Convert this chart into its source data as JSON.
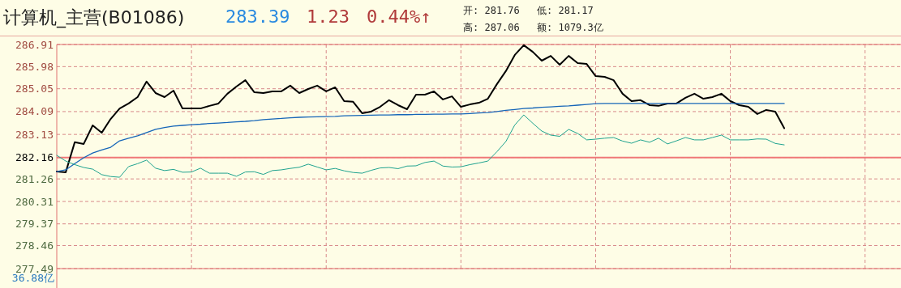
{
  "chart_data": {
    "type": "line",
    "title": "计算机_主营(B01086)",
    "annotations": [
      "283.39",
      "1.23",
      "0.44%↑",
      "开: 281.76",
      "低: 281.17",
      "高: 287.06",
      "额: 1079.3亿",
      "36.88亿"
    ],
    "categories": [
      null,
      null,
      null,
      null,
      null,
      null,
      null,
      null,
      null,
      null,
      null,
      null,
      null,
      null,
      null,
      null,
      null,
      null,
      null,
      null,
      null,
      null,
      null,
      null,
      null,
      null,
      null,
      null,
      null,
      null,
      null,
      null,
      null,
      null,
      null,
      null,
      null,
      null,
      null,
      null,
      null,
      null,
      null,
      null,
      null,
      null,
      null,
      null,
      null,
      null,
      null,
      null,
      null,
      null,
      null,
      null,
      null,
      null,
      null,
      null,
      null,
      null,
      null,
      null,
      null,
      null,
      null,
      null,
      null,
      null,
      null,
      null,
      null,
      null,
      null,
      null,
      null,
      null,
      null,
      null,
      null,
      null,
      null,
      null,
      null,
      null,
      null,
      null,
      null,
      null,
      null,
      null,
      null,
      null,
      null
    ],
    "ylim": [
      277.49,
      286.91
    ],
    "yticks": [
      277.49,
      278.46,
      279.37,
      280.31,
      281.26,
      282.16,
      283.13,
      284.09,
      285.05,
      285.98,
      286.91
    ],
    "grid": true,
    "marker": "none",
    "line_style": "solid",
    "ref_lines": [
      {
        "axis": "y",
        "value": 282.16,
        "label": null,
        "color": "#f07878",
        "line_style": "solid"
      }
    ],
    "series": [
      {
        "color": "#000000",
        "values": [
          281.57,
          281.54,
          282.8,
          282.73,
          283.51,
          283.2,
          283.78,
          284.22,
          284.43,
          284.7,
          285.35,
          284.87,
          284.7,
          284.97,
          284.22,
          284.22,
          284.22,
          284.33,
          284.43,
          284.84,
          285.14,
          285.41,
          284.9,
          284.87,
          284.94,
          284.94,
          285.18,
          284.87,
          285.04,
          285.18,
          284.94,
          285.11,
          284.53,
          284.5,
          284.02,
          284.09,
          284.29,
          284.57,
          284.36,
          284.19,
          284.8,
          284.8,
          284.94,
          284.6,
          284.73,
          284.29,
          284.39,
          284.46,
          284.63,
          285.24,
          285.79,
          286.47,
          286.88,
          286.6,
          286.23,
          286.43,
          286.06,
          286.43,
          286.13,
          286.09,
          285.58,
          285.55,
          285.41,
          284.84,
          284.53,
          284.57,
          284.36,
          284.33,
          284.43,
          284.43,
          284.67,
          284.84,
          284.63,
          284.7,
          284.84,
          284.53,
          284.36,
          284.29,
          283.99,
          284.16,
          284.09,
          283.39,
          null,
          null,
          null,
          null,
          null,
          null,
          null,
          null,
          null,
          null,
          null,
          null,
          null
        ]
      },
      {
        "color": "#1565b8",
        "values": [
          281.57,
          281.64,
          281.9,
          282.15,
          282.35,
          282.48,
          282.59,
          282.86,
          282.97,
          283.07,
          283.21,
          283.34,
          283.42,
          283.48,
          283.51,
          283.54,
          283.56,
          283.59,
          283.61,
          283.63,
          283.66,
          283.68,
          283.71,
          283.75,
          283.78,
          283.8,
          283.83,
          283.85,
          283.86,
          283.87,
          283.88,
          283.89,
          283.91,
          283.92,
          283.93,
          283.94,
          283.95,
          283.95,
          283.96,
          283.96,
          283.97,
          283.97,
          283.98,
          283.98,
          283.99,
          283.99,
          284.01,
          284.03,
          284.05,
          284.09,
          284.14,
          284.18,
          284.22,
          284.24,
          284.27,
          284.29,
          284.31,
          284.33,
          284.36,
          284.39,
          284.42,
          284.43,
          284.43,
          284.43,
          284.43,
          284.43,
          284.43,
          284.43,
          284.43,
          284.43,
          284.43,
          284.43,
          284.43,
          284.43,
          284.43,
          284.43,
          284.43,
          284.43,
          284.43,
          284.43,
          284.43,
          284.43,
          null,
          null,
          null,
          null,
          null,
          null,
          null,
          null,
          null,
          null,
          null,
          null,
          null
        ]
      },
      {
        "color": "#1fa38f",
        "values": [
          282.25,
          282.01,
          281.86,
          281.74,
          281.67,
          281.44,
          281.36,
          281.33,
          281.78,
          281.9,
          282.05,
          281.71,
          281.61,
          281.66,
          281.54,
          281.55,
          281.71,
          281.5,
          281.5,
          281.5,
          281.37,
          281.55,
          281.56,
          281.45,
          281.61,
          281.64,
          281.7,
          281.75,
          281.88,
          281.76,
          281.64,
          281.7,
          281.6,
          281.53,
          281.5,
          281.62,
          281.72,
          281.74,
          281.69,
          281.8,
          281.81,
          281.95,
          282.01,
          281.8,
          281.76,
          281.77,
          281.86,
          281.93,
          282.01,
          282.4,
          282.83,
          283.53,
          283.95,
          283.6,
          283.27,
          283.1,
          283.05,
          283.34,
          283.17,
          282.9,
          282.93,
          282.97,
          283.0,
          282.85,
          282.76,
          282.9,
          282.8,
          282.97,
          282.73,
          282.86,
          283.0,
          282.9,
          282.9,
          283.0,
          283.1,
          282.9,
          282.9,
          282.9,
          282.94,
          282.93,
          282.75,
          282.69,
          null,
          null,
          null,
          null,
          null,
          null,
          null,
          null,
          null,
          null,
          null,
          null,
          null
        ]
      }
    ]
  }
}
